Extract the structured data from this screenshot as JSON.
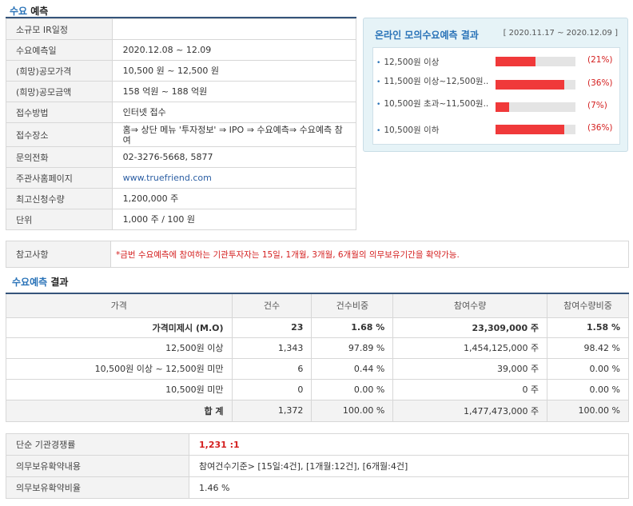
{
  "sections": {
    "forecast": {
      "highlight": "수요",
      "rest": " 예측"
    },
    "result": {
      "highlight": "수요예측",
      "rest": " 결과"
    }
  },
  "info": [
    {
      "key": "소규모 IR일정",
      "value": ""
    },
    {
      "key": "수요예측일",
      "value": "2020.12.08 ~ 12.09"
    },
    {
      "key": "(희망)공모가격",
      "value": "10,500 원 ~ 12,500 원"
    },
    {
      "key": "(희망)공모금액",
      "value": "158 억원 ~ 188 억원"
    },
    {
      "key": "접수방법",
      "value": "인터넷 접수"
    },
    {
      "key": "접수장소",
      "value": "홈⇒ 상단 메뉴 '투자정보' ⇒ IPO ⇒ 수요예측⇒ 수요예측 참여"
    },
    {
      "key": "문의전화",
      "value": "02-3276-5668, 5877"
    },
    {
      "key": "주관사홈페이지",
      "value": "www.truefriend.com"
    },
    {
      "key": "최고신청수량",
      "value": "1,200,000 주"
    },
    {
      "key": "단위",
      "value": "1,000 주 / 100 원"
    }
  ],
  "online": {
    "title": "온라인 모의수요예측 결과",
    "period": "[ 2020.11.17 ~ 2020.12.09 ]",
    "rows": [
      {
        "label": "12,500원 이상",
        "pct": "(21%)",
        "value": 21
      },
      {
        "label": "11,500원 이상~12,500원..",
        "pct": "(36%)",
        "value": 36
      },
      {
        "label": "10,500원 초과~11,500원..",
        "pct": "(7%)",
        "value": 7
      },
      {
        "label": "10,500원 이하",
        "pct": "(36%)",
        "value": 36
      }
    ],
    "bar_color": "#f0393a"
  },
  "note": {
    "key": "참고사항",
    "value": "*금번 수요예측에 참여하는 기관투자자는 15일, 1개월, 3개월, 6개월의 의무보유기간을 확약가능."
  },
  "result_table": {
    "headers": [
      "가격",
      "건수",
      "건수비중",
      "참여수량",
      "참여수량비중"
    ],
    "rows": [
      [
        "가격미제시 (M.O)",
        "23",
        "1.68 %",
        "23,309,000 주",
        "1.58 %"
      ],
      [
        "12,500원 이상",
        "1,343",
        "97.89 %",
        "1,454,125,000 주",
        "98.42 %"
      ],
      [
        "10,500원 이상 ~ 12,500원 미만",
        "6",
        "0.44 %",
        "39,000 주",
        "0.00 %"
      ],
      [
        "10,500원 미만",
        "0",
        "0.00 %",
        "0 주",
        "0.00 %"
      ]
    ],
    "total": [
      "합 계",
      "1,372",
      "100.00 %",
      "1,477,473,000 주",
      "100.00 %"
    ]
  },
  "summary": [
    {
      "key": "단순 기관경쟁률",
      "value": "1,231 :1"
    },
    {
      "key": "의무보유확약내용",
      "value": "참여건수기준> [15일:4건], [1개월:12건], [6개월:4건]"
    },
    {
      "key": "의무보유확약비율",
      "value": "1.46 %"
    }
  ],
  "colors": {
    "accent": "#2a73b8",
    "rule": "#35547a",
    "highlight_red": "#d41f1f"
  }
}
